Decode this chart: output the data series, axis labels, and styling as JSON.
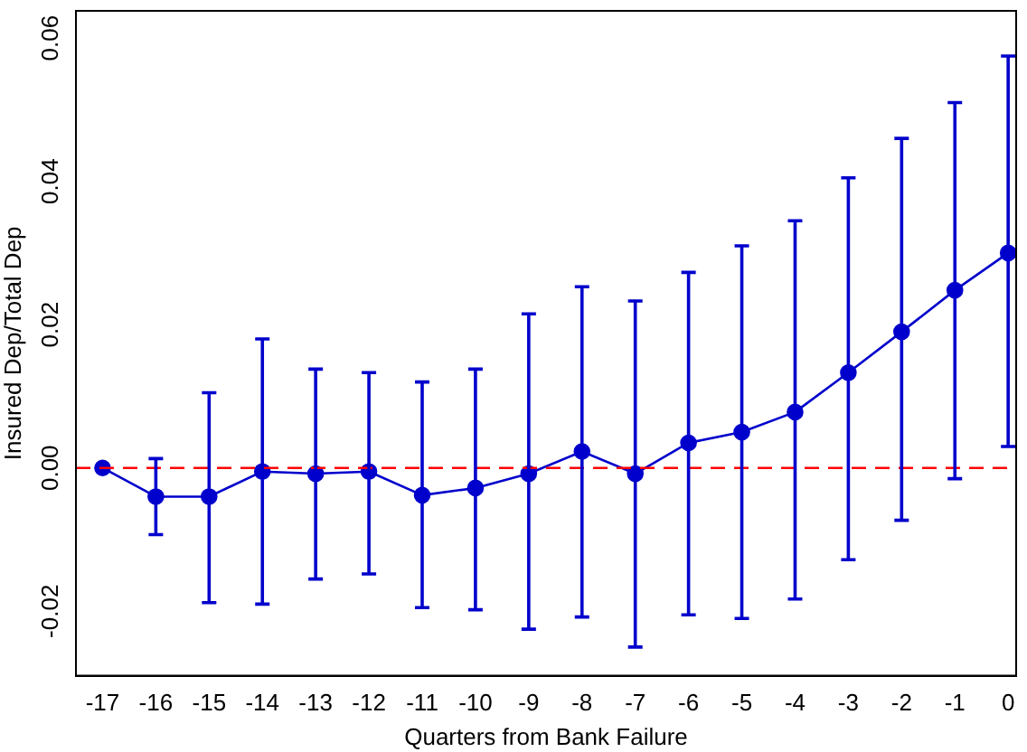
{
  "chart_data": {
    "type": "line",
    "xlabel": "Quarters from Bank Failure",
    "ylabel": "Insured Dep/Total Dep",
    "x": [
      -17,
      -16,
      -15,
      -14,
      -13,
      -12,
      -11,
      -10,
      -9,
      -8,
      -7,
      -6,
      -5,
      -4,
      -3,
      -2,
      -1,
      0
    ],
    "series": [
      {
        "color": "#0000cc",
        "values": [
          0,
          -0.004,
          -0.004,
          -0.0005,
          -0.0008,
          -0.0005,
          -0.0038,
          -0.0028,
          -0.0008,
          0.0023,
          -0.0008,
          0.0035,
          0.005,
          0.0078,
          0.0133,
          0.019,
          0.0248,
          0.03
        ],
        "errors": [
          null,
          [
            -0.0093,
            0.0013
          ],
          [
            -0.0188,
            0.0105
          ],
          [
            -0.019,
            0.018
          ],
          [
            -0.0155,
            0.0138
          ],
          [
            -0.0148,
            0.0133
          ],
          [
            -0.0195,
            0.012
          ],
          [
            -0.0198,
            0.0138
          ],
          [
            -0.0225,
            0.0215
          ],
          [
            -0.0208,
            0.0253
          ],
          [
            -0.025,
            0.0233
          ],
          [
            -0.0205,
            0.0273
          ],
          [
            -0.021,
            0.031
          ],
          [
            -0.0183,
            0.0345
          ],
          [
            -0.0128,
            0.0405
          ],
          [
            -0.0073,
            0.046
          ],
          [
            -0.0015,
            0.051
          ],
          [
            0.003,
            0.0575
          ]
        ]
      }
    ],
    "xlim": [
      -17.5,
      0.15
    ],
    "xticks": [
      -17,
      -16,
      -15,
      -14,
      -13,
      -12,
      -11,
      -10,
      -9,
      -8,
      -7,
      -6,
      -5,
      -4,
      -3,
      -2,
      -1,
      0
    ],
    "ylim": [
      -0.029,
      0.0638
    ],
    "yticks": [
      {
        "value": -0.02,
        "label": "-0.02"
      },
      {
        "value": 0,
        "label": "0.00"
      },
      {
        "value": 0.02,
        "label": "0.02"
      },
      {
        "value": 0.04,
        "label": "0.04"
      },
      {
        "value": 0.06,
        "label": "0.06"
      }
    ],
    "ref_lines": [
      {
        "axis": "y",
        "value": 0,
        "color": "#ff0000",
        "line_style": "dashed"
      }
    ],
    "grid": false,
    "legend": false,
    "marker": "circle",
    "line_style": "solid"
  }
}
